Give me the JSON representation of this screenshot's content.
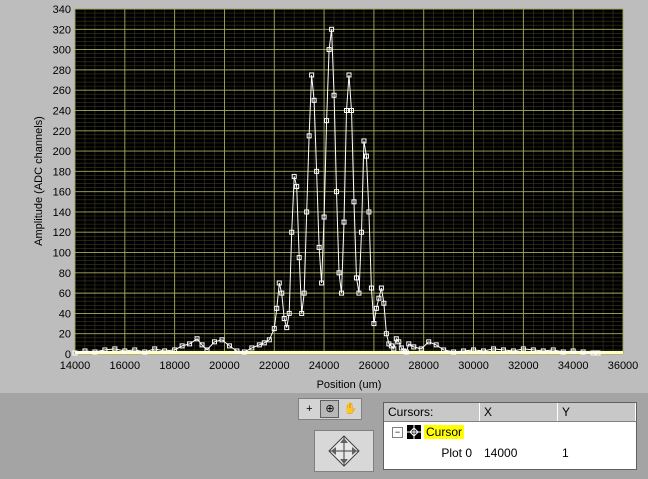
{
  "graph": {
    "x_axis_title": "Position (um)",
    "y_axis_title": "Amplitude (ADC channels)",
    "x_ticks": [
      "14000",
      "16000",
      "18000",
      "20000",
      "22000",
      "24000",
      "26000",
      "28000",
      "30000",
      "32000",
      "34000",
      "36000"
    ],
    "y_ticks": [
      "0",
      "20",
      "40",
      "60",
      "80",
      "100",
      "120",
      "140",
      "160",
      "180",
      "200",
      "220",
      "240",
      "260",
      "280",
      "300",
      "320",
      "340"
    ],
    "colors": {
      "plot_background": "#000000",
      "grid": "#a8a85a",
      "trace": "#ffffff",
      "baseline": "#ffffc0",
      "panel": "#bdbdbd"
    }
  },
  "palette": {
    "tools": [
      {
        "name": "cursor-move-tool",
        "glyph": "+"
      },
      {
        "name": "zoom-tool",
        "glyph": "⊕"
      },
      {
        "name": "pan-tool",
        "glyph": "✋"
      }
    ],
    "icons": [
      "crosshair-icon",
      "zoom-icon",
      "hand-icon",
      "diamond-arrows-icon",
      "cursor-icon"
    ]
  },
  "cursor_legend": {
    "headers": {
      "name": "Cursors:",
      "x": "X",
      "y": "Y"
    },
    "cursor_name": "Cursor",
    "expander": "−",
    "plot_name": "Plot 0",
    "x_value": "14000",
    "y_value": "1"
  },
  "chart_data": {
    "type": "line",
    "xlabel": "Position (um)",
    "ylabel": "Amplitude (ADC channels)",
    "xlim": [
      14000,
      36000
    ],
    "ylim": [
      0,
      340
    ],
    "grid": true,
    "series": [
      {
        "x": [
          14000,
          14400,
          14800,
          15200,
          15600,
          16000,
          16400,
          16800,
          17200,
          17600,
          18000,
          18300,
          18600,
          18900,
          19100,
          19300,
          19600,
          19900,
          20200,
          20500,
          20800,
          21100,
          21400,
          21600,
          21800,
          22000,
          22100,
          22200,
          22300,
          22400,
          22500,
          22600,
          22700,
          22800,
          22900,
          23000,
          23100,
          23200,
          23300,
          23400,
          23500,
          23600,
          23700,
          23800,
          23900,
          24000,
          24100,
          24200,
          24300,
          24400,
          24500,
          24600,
          24700,
          24800,
          24900,
          25000,
          25100,
          25200,
          25300,
          25400,
          25500,
          25600,
          25700,
          25800,
          25900,
          26000,
          26100,
          26200,
          26300,
          26400,
          26500,
          26600,
          26700,
          26800,
          26900,
          27000,
          27100,
          27200,
          27300,
          27400,
          27600,
          27900,
          28200,
          28500,
          28800,
          29200,
          29600,
          30000,
          30400,
          30800,
          31200,
          31600,
          32000,
          32400,
          32800,
          33200,
          33600,
          34000,
          34400,
          34800,
          35000
        ],
        "y": [
          1,
          3,
          2,
          4,
          5,
          3,
          4,
          2,
          5,
          3,
          4,
          8,
          10,
          15,
          9,
          4,
          12,
          14,
          8,
          3,
          2,
          6,
          9,
          11,
          14,
          25,
          45,
          70,
          60,
          35,
          26,
          40,
          120,
          175,
          165,
          95,
          40,
          60,
          140,
          215,
          275,
          250,
          180,
          105,
          70,
          135,
          230,
          300,
          320,
          255,
          160,
          80,
          60,
          130,
          240,
          275,
          240,
          150,
          75,
          60,
          120,
          210,
          195,
          140,
          65,
          30,
          45,
          55,
          65,
          50,
          20,
          10,
          8,
          5,
          15,
          12,
          6,
          3,
          2,
          10,
          7,
          5,
          12,
          9,
          4,
          2,
          3,
          4,
          3,
          5,
          4,
          3,
          5,
          4,
          3,
          4,
          2,
          3,
          2,
          1,
          1
        ]
      }
    ]
  }
}
